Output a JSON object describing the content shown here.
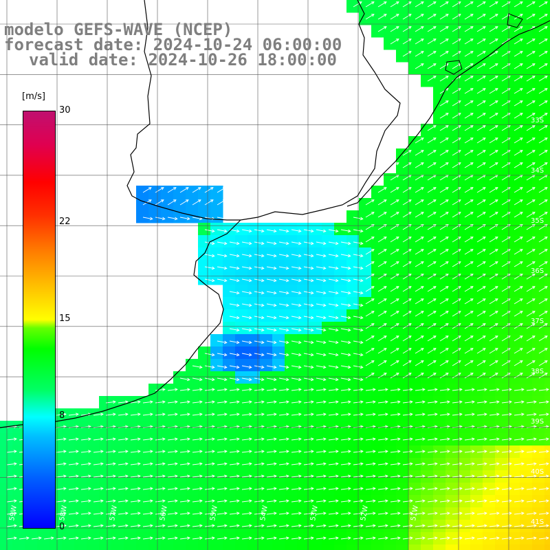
{
  "header": {
    "line1": "modelo GEFS-WAVE (NCEP)",
    "line2": "forecast date: 2024-10-24 06:00:00",
    "line3": "valid date: 2024-10-26 18:00:00"
  },
  "colorbar": {
    "unit": "[m/s]",
    "min": 0,
    "max": 30,
    "ticks": [
      {
        "value": 30,
        "label": "30"
      },
      {
        "value": 22,
        "label": "22"
      },
      {
        "value": 15,
        "label": "15"
      },
      {
        "value": 8,
        "label": "8"
      },
      {
        "value": 0,
        "label": "0"
      }
    ],
    "stops": [
      "#0000ff",
      "#00bfff",
      "#00ffff",
      "#00ff00",
      "#ffff00",
      "#ff8000",
      "#ff0000",
      "#c0106f"
    ]
  },
  "axes": {
    "lon_labels": [
      "59W",
      "58W",
      "57W",
      "56W",
      "55W",
      "54W",
      "53W",
      "52W",
      "51W"
    ],
    "lat_labels": [
      "33S",
      "34S",
      "35S",
      "36S",
      "37S",
      "38S",
      "39S",
      "40S",
      "41S"
    ]
  },
  "colors": {
    "land": "#ffffff",
    "coast": "#000000",
    "grid": "#555555",
    "arrow": "#ffffff"
  }
}
